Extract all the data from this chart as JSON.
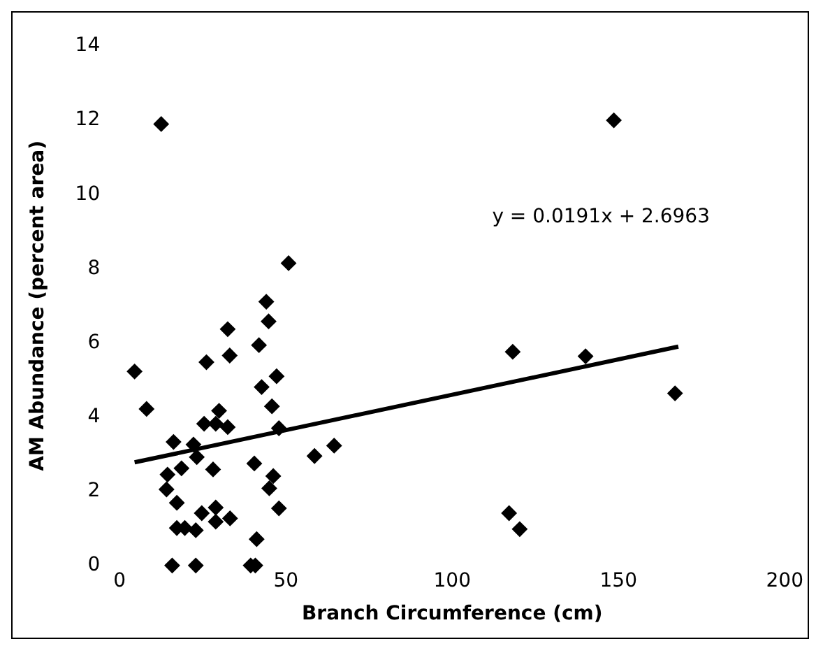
{
  "chart_data": {
    "type": "scatter",
    "xlabel": "Branch Circumference (cm)",
    "ylabel": "AM Abundance (percent area)",
    "xlim": [
      0,
      200
    ],
    "xticks": [
      0,
      50,
      100,
      150,
      200
    ],
    "ylim": [
      0,
      14
    ],
    "yticks": [
      0,
      2,
      4,
      6,
      8,
      10,
      12,
      14
    ],
    "grid": false,
    "legend": false,
    "marker": "diamond",
    "annotations": [
      "y = 0.0191x + 2.6963"
    ],
    "series": [
      {
        "color": "#000000",
        "x": [
          4.5,
          8.1,
          50.8,
          44.1,
          44.8,
          32.5,
          41.9,
          33.1,
          26.1,
          47.2,
          42.7,
          45.8,
          29.9,
          25.4,
          28.9,
          32.5,
          47.9,
          16.2,
          22.2,
          23.2,
          64.5,
          58.6,
          18.6,
          28.1,
          40.5,
          14.4,
          46.2,
          14.1,
          45.0,
          17.2,
          47.9,
          28.9,
          24.7,
          33.2,
          28.9,
          17.2,
          19.6,
          22.9,
          41.2,
          15.8,
          22.9,
          39.4,
          40.8,
          12.5,
          148.6,
          118.2,
          140.1,
          167.0,
          117.1,
          120.3
        ],
        "values": [
          5.23,
          4.22,
          8.15,
          7.11,
          6.58,
          6.37,
          5.94,
          5.66,
          5.48,
          5.1,
          4.81,
          4.29,
          4.17,
          3.82,
          3.82,
          3.73,
          3.7,
          3.33,
          3.26,
          2.92,
          3.23,
          2.95,
          2.62,
          2.59,
          2.75,
          2.45,
          2.41,
          2.05,
          2.08,
          1.69,
          1.54,
          1.56,
          1.41,
          1.27,
          1.18,
          1.01,
          1.01,
          0.95,
          0.71,
          0,
          0,
          0,
          0,
          11.9,
          12.0,
          5.76,
          5.64,
          4.64,
          1.41,
          0.98
        ]
      },
      {
        "type": "line",
        "color": "#000000",
        "marker": "none",
        "x": [
          4.5,
          168
        ],
        "values": [
          2.78,
          5.9
        ]
      }
    ]
  }
}
